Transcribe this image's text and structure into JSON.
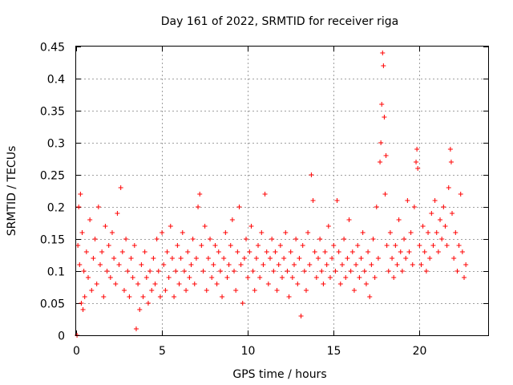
{
  "chart_data": {
    "type": "scatter",
    "title": "Day 161 of 2022, SRMTID for receiver riga",
    "xlabel": "GPS time / hours",
    "ylabel": "SRMTID / TECUs",
    "xlim": [
      0,
      24
    ],
    "ylim": [
      0,
      0.45
    ],
    "x_ticks": [
      0,
      5,
      10,
      15,
      20
    ],
    "y_ticks": [
      0,
      0.05,
      0.1,
      0.15,
      0.2,
      0.25,
      0.3,
      0.35,
      0.4,
      0.45
    ],
    "x_tick_labels": [
      "0",
      "5",
      "10",
      "15",
      "20"
    ],
    "y_tick_labels": [
      "0",
      "0.05",
      "0.1",
      "0.15",
      "0.2",
      "0.25",
      "0.3",
      "0.35",
      "0.4",
      "0.45"
    ],
    "grid": true,
    "marker": "+",
    "color": "#ff0000",
    "series": [
      {
        "name": "SRMTID",
        "points": [
          [
            0.05,
            0.0
          ],
          [
            0.1,
            0.14
          ],
          [
            0.15,
            0.2
          ],
          [
            0.2,
            0.11
          ],
          [
            0.25,
            0.22
          ],
          [
            0.3,
            0.05
          ],
          [
            0.35,
            0.16
          ],
          [
            0.4,
            0.04
          ],
          [
            0.45,
            0.1
          ],
          [
            0.5,
            0.06
          ],
          [
            0.6,
            0.13
          ],
          [
            0.7,
            0.09
          ],
          [
            0.8,
            0.18
          ],
          [
            0.9,
            0.07
          ],
          [
            1.0,
            0.12
          ],
          [
            1.1,
            0.15
          ],
          [
            1.2,
            0.08
          ],
          [
            1.3,
            0.2
          ],
          [
            1.4,
            0.11
          ],
          [
            1.5,
            0.13
          ],
          [
            1.6,
            0.06
          ],
          [
            1.7,
            0.17
          ],
          [
            1.8,
            0.1
          ],
          [
            1.9,
            0.14
          ],
          [
            2.0,
            0.09
          ],
          [
            2.1,
            0.16
          ],
          [
            2.2,
            0.12
          ],
          [
            2.3,
            0.08
          ],
          [
            2.4,
            0.19
          ],
          [
            2.5,
            0.11
          ],
          [
            2.6,
            0.23
          ],
          [
            2.7,
            0.13
          ],
          [
            2.8,
            0.07
          ],
          [
            2.9,
            0.15
          ],
          [
            3.0,
            0.1
          ],
          [
            3.1,
            0.06
          ],
          [
            3.2,
            0.12
          ],
          [
            3.3,
            0.09
          ],
          [
            3.4,
            0.14
          ],
          [
            3.5,
            0.01
          ],
          [
            3.6,
            0.08
          ],
          [
            3.7,
            0.04
          ],
          [
            3.8,
            0.11
          ],
          [
            3.9,
            0.06
          ],
          [
            4.0,
            0.13
          ],
          [
            4.1,
            0.09
          ],
          [
            4.2,
            0.05
          ],
          [
            4.3,
            0.1
          ],
          [
            4.4,
            0.07
          ],
          [
            4.5,
            0.12
          ],
          [
            4.6,
            0.08
          ],
          [
            4.7,
            0.15
          ],
          [
            4.8,
            0.1
          ],
          [
            4.9,
            0.06
          ],
          [
            5.0,
            0.16
          ],
          [
            5.1,
            0.11
          ],
          [
            5.2,
            0.07
          ],
          [
            5.3,
            0.13
          ],
          [
            5.4,
            0.09
          ],
          [
            5.5,
            0.17
          ],
          [
            5.6,
            0.12
          ],
          [
            5.7,
            0.06
          ],
          [
            5.8,
            0.1
          ],
          [
            5.9,
            0.14
          ],
          [
            6.0,
            0.08
          ],
          [
            6.1,
            0.12
          ],
          [
            6.2,
            0.16
          ],
          [
            6.3,
            0.1
          ],
          [
            6.4,
            0.07
          ],
          [
            6.5,
            0.13
          ],
          [
            6.6,
            0.09
          ],
          [
            6.7,
            0.11
          ],
          [
            6.8,
            0.15
          ],
          [
            6.9,
            0.08
          ],
          [
            7.0,
            0.12
          ],
          [
            7.1,
            0.2
          ],
          [
            7.2,
            0.22
          ],
          [
            7.3,
            0.14
          ],
          [
            7.4,
            0.1
          ],
          [
            7.5,
            0.17
          ],
          [
            7.6,
            0.07
          ],
          [
            7.7,
            0.12
          ],
          [
            7.8,
            0.15
          ],
          [
            7.9,
            0.09
          ],
          [
            8.0,
            0.11
          ],
          [
            8.1,
            0.14
          ],
          [
            8.2,
            0.08
          ],
          [
            8.3,
            0.13
          ],
          [
            8.4,
            0.1
          ],
          [
            8.5,
            0.06
          ],
          [
            8.6,
            0.12
          ],
          [
            8.7,
            0.16
          ],
          [
            8.8,
            0.09
          ],
          [
            8.9,
            0.11
          ],
          [
            9.0,
            0.14
          ],
          [
            9.1,
            0.18
          ],
          [
            9.2,
            0.1
          ],
          [
            9.3,
            0.07
          ],
          [
            9.4,
            0.13
          ],
          [
            9.5,
            0.2
          ],
          [
            9.6,
            0.11
          ],
          [
            9.7,
            0.05
          ],
          [
            9.8,
            0.12
          ],
          [
            9.9,
            0.15
          ],
          [
            10.0,
            0.09
          ],
          [
            10.1,
            0.13
          ],
          [
            10.2,
            0.17
          ],
          [
            10.3,
            0.1
          ],
          [
            10.4,
            0.07
          ],
          [
            10.5,
            0.12
          ],
          [
            10.6,
            0.14
          ],
          [
            10.7,
            0.09
          ],
          [
            10.8,
            0.16
          ],
          [
            10.9,
            0.11
          ],
          [
            11.0,
            0.22
          ],
          [
            11.1,
            0.13
          ],
          [
            11.2,
            0.08
          ],
          [
            11.3,
            0.12
          ],
          [
            11.4,
            0.15
          ],
          [
            11.5,
            0.1
          ],
          [
            11.6,
            0.13
          ],
          [
            11.7,
            0.07
          ],
          [
            11.8,
            0.11
          ],
          [
            11.9,
            0.14
          ],
          [
            12.0,
            0.09
          ],
          [
            12.1,
            0.12
          ],
          [
            12.2,
            0.16
          ],
          [
            12.3,
            0.1
          ],
          [
            12.4,
            0.06
          ],
          [
            12.5,
            0.13
          ],
          [
            12.6,
            0.09
          ],
          [
            12.7,
            0.11
          ],
          [
            12.8,
            0.15
          ],
          [
            12.9,
            0.08
          ],
          [
            13.0,
            0.12
          ],
          [
            13.1,
            0.03
          ],
          [
            13.2,
            0.14
          ],
          [
            13.3,
            0.1
          ],
          [
            13.4,
            0.07
          ],
          [
            13.5,
            0.16
          ],
          [
            13.6,
            0.11
          ],
          [
            13.7,
            0.25
          ],
          [
            13.8,
            0.21
          ],
          [
            13.9,
            0.13
          ],
          [
            14.0,
            0.09
          ],
          [
            14.1,
            0.12
          ],
          [
            14.2,
            0.15
          ],
          [
            14.3,
            0.1
          ],
          [
            14.4,
            0.08
          ],
          [
            14.5,
            0.13
          ],
          [
            14.6,
            0.11
          ],
          [
            14.7,
            0.17
          ],
          [
            14.8,
            0.09
          ],
          [
            14.9,
            0.12
          ],
          [
            15.0,
            0.14
          ],
          [
            15.1,
            0.1
          ],
          [
            15.2,
            0.21
          ],
          [
            15.3,
            0.13
          ],
          [
            15.4,
            0.08
          ],
          [
            15.5,
            0.11
          ],
          [
            15.6,
            0.15
          ],
          [
            15.7,
            0.09
          ],
          [
            15.8,
            0.12
          ],
          [
            15.9,
            0.18
          ],
          [
            16.0,
            0.1
          ],
          [
            16.1,
            0.13
          ],
          [
            16.2,
            0.07
          ],
          [
            16.3,
            0.11
          ],
          [
            16.4,
            0.14
          ],
          [
            16.5,
            0.09
          ],
          [
            16.6,
            0.12
          ],
          [
            16.7,
            0.16
          ],
          [
            16.8,
            0.1
          ],
          [
            16.9,
            0.08
          ],
          [
            17.0,
            0.13
          ],
          [
            17.1,
            0.06
          ],
          [
            17.2,
            0.11
          ],
          [
            17.3,
            0.15
          ],
          [
            17.4,
            0.09
          ],
          [
            17.5,
            0.2
          ],
          [
            17.6,
            0.12
          ],
          [
            17.7,
            0.27
          ],
          [
            17.75,
            0.3
          ],
          [
            17.8,
            0.36
          ],
          [
            17.85,
            0.44
          ],
          [
            17.9,
            0.42
          ],
          [
            17.95,
            0.34
          ],
          [
            18.0,
            0.22
          ],
          [
            18.05,
            0.28
          ],
          [
            18.1,
            0.14
          ],
          [
            18.2,
            0.1
          ],
          [
            18.3,
            0.16
          ],
          [
            18.4,
            0.12
          ],
          [
            18.5,
            0.09
          ],
          [
            18.6,
            0.14
          ],
          [
            18.7,
            0.11
          ],
          [
            18.8,
            0.18
          ],
          [
            18.9,
            0.13
          ],
          [
            19.0,
            0.1
          ],
          [
            19.1,
            0.15
          ],
          [
            19.2,
            0.12
          ],
          [
            19.3,
            0.21
          ],
          [
            19.4,
            0.13
          ],
          [
            19.5,
            0.16
          ],
          [
            19.6,
            0.11
          ],
          [
            19.7,
            0.2
          ],
          [
            19.8,
            0.27
          ],
          [
            19.85,
            0.29
          ],
          [
            19.9,
            0.26
          ],
          [
            20.0,
            0.14
          ],
          [
            20.1,
            0.11
          ],
          [
            20.2,
            0.17
          ],
          [
            20.3,
            0.13
          ],
          [
            20.4,
            0.1
          ],
          [
            20.5,
            0.16
          ],
          [
            20.6,
            0.12
          ],
          [
            20.7,
            0.19
          ],
          [
            20.8,
            0.14
          ],
          [
            20.9,
            0.21
          ],
          [
            21.0,
            0.16
          ],
          [
            21.1,
            0.13
          ],
          [
            21.2,
            0.18
          ],
          [
            21.3,
            0.15
          ],
          [
            21.4,
            0.2
          ],
          [
            21.5,
            0.17
          ],
          [
            21.6,
            0.14
          ],
          [
            21.7,
            0.23
          ],
          [
            21.8,
            0.29
          ],
          [
            21.85,
            0.27
          ],
          [
            21.9,
            0.19
          ],
          [
            22.0,
            0.12
          ],
          [
            22.1,
            0.16
          ],
          [
            22.2,
            0.1
          ],
          [
            22.3,
            0.14
          ],
          [
            22.4,
            0.22
          ],
          [
            22.5,
            0.13
          ],
          [
            22.6,
            0.09
          ],
          [
            22.7,
            0.11
          ]
        ]
      }
    ]
  }
}
